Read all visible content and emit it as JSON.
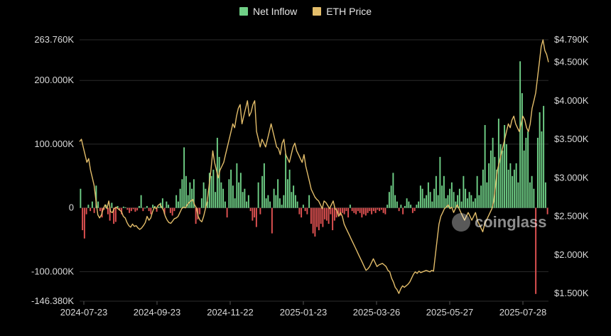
{
  "legend": {
    "inflow_label": "Net Inflow",
    "price_label": "ETH Price"
  },
  "watermark": {
    "text": "coinglass",
    "icon": "coinglass-logo-icon"
  },
  "colors": {
    "background": "#000000",
    "positive_bar": "#6fcf86",
    "negative_bar": "#e05252",
    "price_line": "#e3bd6a",
    "grid": "#2b2b2b",
    "axis_text": "#d9d9d9"
  },
  "chart_data": {
    "type": "bar+line",
    "title": "",
    "x_ticks": [
      "2024-07-23",
      "2024-09-23",
      "2024-11-22",
      "2025-01-23",
      "2025-03-26",
      "2025-05-27",
      "2025-07-28"
    ],
    "y_left_ticks": [
      "263.760K",
      "200.000K",
      "100.000K",
      "0",
      "-100.000K",
      "-146.380K"
    ],
    "y_left_range": [
      -146380,
      263760
    ],
    "y_right_ticks": [
      "$4.790K",
      "$4.500K",
      "$4.000K",
      "$3.500K",
      "$3.000K",
      "$2.500K",
      "$2.000K",
      "$1.500K"
    ],
    "y_right_range": [
      1400,
      4790
    ],
    "grid": true,
    "legend_position": "top-center",
    "series": [
      {
        "name": "Net Inflow",
        "axis": "left",
        "kind": "bar",
        "values": [
          30000,
          -35000,
          -48000,
          -10000,
          5000,
          -5000,
          10000,
          -8000,
          35000,
          10000,
          -5000,
          -15000,
          -3000,
          5000,
          -10000,
          -20000,
          8000,
          -25000,
          -22000,
          3000,
          -4000,
          -10000,
          2000,
          1000,
          -3000,
          -8000,
          -5000,
          -2000,
          -6000,
          -4000,
          3000,
          20000,
          -5000,
          0,
          3000,
          -5000,
          -10000,
          5000,
          3000,
          -6000,
          2000,
          8000,
          15000,
          -10000,
          10000,
          5000,
          -8000,
          -12000,
          -5000,
          20000,
          10000,
          30000,
          45000,
          95000,
          50000,
          20000,
          40000,
          30000,
          45000,
          -25000,
          -18000,
          -10000,
          15000,
          40000,
          30000,
          10000,
          55000,
          50000,
          60000,
          25000,
          110000,
          80000,
          40000,
          30000,
          10000,
          -15000,
          45000,
          60000,
          35000,
          15000,
          70000,
          40000,
          55000,
          25000,
          30000,
          10000,
          20000,
          -5000,
          -20000,
          -15000,
          -30000,
          40000,
          -10000,
          50000,
          70000,
          15000,
          20000,
          10000,
          -40000,
          30000,
          20000,
          45000,
          15000,
          5000,
          20000,
          85000,
          45000,
          60000,
          25000,
          35000,
          20000,
          10000,
          -10000,
          -15000,
          5000,
          -5000,
          -10000,
          20000,
          -25000,
          -40000,
          -45000,
          -30000,
          -35000,
          -25000,
          -30000,
          -18000,
          -20000,
          -25000,
          -10000,
          -35000,
          -20000,
          -15000,
          -10000,
          -12000,
          -8000,
          -10000,
          -5000,
          -15000,
          5000,
          -5000,
          -8000,
          -10000,
          -5000,
          -8000,
          -15000,
          -10000,
          -12000,
          -8000,
          -5000,
          -10000,
          -5000,
          -8000,
          -3000,
          -5000,
          -3000,
          -8000,
          -10000,
          5000,
          25000,
          35000,
          55000,
          20000,
          10000,
          -5000,
          5000,
          -10000,
          3000,
          15000,
          10000,
          5000,
          -8000,
          -5000,
          5000,
          10000,
          35000,
          30000,
          15000,
          20000,
          40000,
          25000,
          10000,
          30000,
          50000,
          20000,
          80000,
          35000,
          50000,
          15000,
          20000,
          30000,
          40000,
          25000,
          10000,
          20000,
          30000,
          10000,
          50000,
          30000,
          15000,
          25000,
          20000,
          10000,
          15000,
          50000,
          20000,
          35000,
          60000,
          130000,
          40000,
          70000,
          90000,
          110000,
          80000,
          60000,
          140000,
          100000,
          90000,
          130000,
          100000,
          60000,
          70000,
          50000,
          60000,
          70000,
          40000,
          230000,
          180000,
          90000,
          110000,
          120000,
          40000,
          50000,
          30000,
          -135000,
          110000,
          150000,
          120000,
          160000,
          40000,
          -10000
        ]
      },
      {
        "name": "ETH Price",
        "axis": "right",
        "kind": "line",
        "values": [
          3470,
          3500,
          3400,
          3300,
          3200,
          3250,
          3100,
          3000,
          2900,
          2700,
          2520,
          2480,
          2520,
          2600,
          2650,
          2600,
          2700,
          2560,
          2550,
          2600,
          2620,
          2600,
          2580,
          2560,
          2500,
          2480,
          2420,
          2380,
          2360,
          2400,
          2370,
          2380,
          2350,
          2330,
          2350,
          2380,
          2420,
          2500,
          2450,
          2480,
          2560,
          2620,
          2600,
          2640,
          2660,
          2620,
          2580,
          2500,
          2450,
          2420,
          2410,
          2440,
          2470,
          2480,
          2500,
          2550,
          2600,
          2620,
          2610,
          2650,
          2680,
          2700,
          2720,
          2650,
          2610,
          2500,
          2450,
          2430,
          2500,
          2600,
          2700,
          2900,
          3100,
          3350,
          3200,
          3100,
          3000,
          3100,
          3150,
          3200,
          3300,
          3400,
          3500,
          3600,
          3700,
          3650,
          3800,
          3900,
          3950,
          3700,
          3800,
          3900,
          4000,
          3800,
          3850,
          3950,
          4000,
          3600,
          3500,
          3400,
          3500,
          3450,
          3400,
          3500,
          3600,
          3700,
          3600,
          3500,
          3400,
          3380,
          3300,
          3450,
          3500,
          3300,
          3250,
          3200,
          3300,
          3400,
          3450,
          3350,
          3300,
          3250,
          3200,
          3300,
          3150,
          3050,
          2950,
          2850,
          2800,
          2750,
          2720,
          2700,
          2650,
          2600,
          2700,
          2680,
          2640,
          2600,
          2650,
          2700,
          2600,
          2580,
          2500,
          2550,
          2500,
          2400,
          2350,
          2300,
          2250,
          2200,
          2150,
          2100,
          2050,
          2000,
          1950,
          1900,
          1850,
          1800,
          1820,
          1850,
          1900,
          1950,
          1900,
          1850,
          1870,
          1880,
          1890,
          1870,
          1850,
          1800,
          1780,
          1700,
          1650,
          1580,
          1550,
          1500,
          1560,
          1600,
          1580,
          1600,
          1620,
          1650,
          1700,
          1750,
          1780,
          1760,
          1790,
          1770,
          1780,
          1790,
          1800,
          1790,
          1780,
          1800,
          1790,
          2000,
          2200,
          2400,
          2500,
          2550,
          2600,
          2620,
          2650,
          2600,
          2620,
          2550,
          2600,
          2650,
          2600,
          2550,
          2500,
          2450,
          2500,
          2550,
          2500,
          2450,
          2500,
          2550,
          2450,
          2400,
          2350,
          2300,
          2400,
          2450,
          2500,
          2550,
          2600,
          2700,
          2900,
          3100,
          3200,
          3300,
          3400,
          3500,
          3600,
          3700,
          3650,
          3750,
          3800,
          3700,
          3650,
          3600,
          3700,
          3800,
          3750,
          3650,
          3600,
          3700,
          3900,
          4000,
          4100,
          4300,
          4500,
          4700,
          4790,
          4650,
          4600,
          4500
        ]
      }
    ]
  }
}
